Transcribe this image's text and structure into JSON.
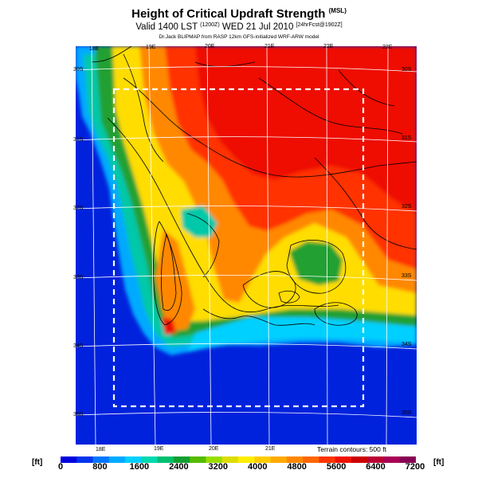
{
  "header": {
    "title": "Height of Critical Updraft Strength",
    "title_unit": "(MSL)",
    "valid_line": "Valid 1400 LST",
    "valid_zone": "(1200Z)",
    "valid_date": "WED 21 Jul 2010",
    "valid_extra": "[24hrFcst@1902Z]",
    "source_line": "Dr.Jack BLIPMAP from RASP 12km GFS-initialized WRF-ARW model"
  },
  "map": {
    "lon_labels_top": [
      "18E",
      "19E",
      "20E",
      "21E",
      "22E",
      "23E"
    ],
    "lon_labels_bottom": [
      "18E",
      "19E",
      "20E",
      "21E"
    ],
    "lat_labels_left": [
      "30S",
      "31S",
      "32S",
      "33S",
      "34S",
      "35S"
    ],
    "lat_labels_right": [
      "30S",
      "31S",
      "32S",
      "33S",
      "34S",
      "35S"
    ],
    "terrain_note": "Terrain contours: 500 ft",
    "forecast_box_style": "white dashed rectangle",
    "colors": {
      "ocean": "#0022dd",
      "low": "#00c8a8",
      "mid": "#ffcc00",
      "high": "#ee1100",
      "contour": "#000000",
      "grid": "#ffffff"
    }
  },
  "colorbar": {
    "unit_left": "[ft]",
    "unit_right": "[ft]",
    "labels": [
      "0",
      "800",
      "1600",
      "2400",
      "3200",
      "4000",
      "4800",
      "5600",
      "6400",
      "7200"
    ],
    "colors": [
      "#0000dd",
      "#0033ee",
      "#0077ff",
      "#00aaff",
      "#00d0ff",
      "#00d8b0",
      "#00c070",
      "#11a030",
      "#55bb00",
      "#99dd00",
      "#dddd00",
      "#ffee00",
      "#ffcc00",
      "#ffaa00",
      "#ff8800",
      "#ff6600",
      "#ff3300",
      "#ee1100",
      "#cc0000",
      "#bb0033",
      "#aa0055",
      "#880055"
    ]
  }
}
